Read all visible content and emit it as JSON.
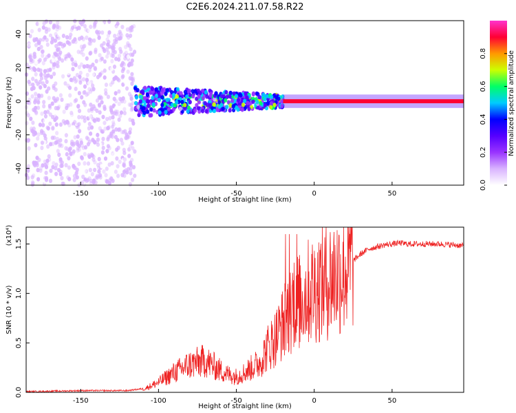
{
  "figure": {
    "title": "C2E6.2024.211.07.58.R22"
  },
  "chart_data": [
    {
      "type": "heatmap",
      "xlabel": "Height of straight line (km)",
      "ylabel": "Frequency (Hz)",
      "xlim": [
        -185,
        96
      ],
      "ylim": [
        -50,
        48
      ],
      "x_ticks": [
        -150,
        -100,
        -50,
        0,
        50
      ],
      "y_ticks": [
        -40,
        -20,
        0,
        20,
        40
      ],
      "colorbar": {
        "label": "Normalized spectral amplitude",
        "range": [
          0,
          1
        ],
        "ticks": [
          "0.0",
          "0.2",
          "0.4",
          "0.6",
          "0.8"
        ],
        "colormap": [
          "#ffffff",
          "#d9b3ff",
          "#9933ff",
          "#5500ff",
          "#0000ff",
          "#00ccff",
          "#00ff66",
          "#ccff00",
          "#ff9900",
          "#ff0033",
          "#ff33cc"
        ]
      },
      "regions": [
        {
          "x_range": [
            -185,
            -115
          ],
          "freq_range": [
            -50,
            48
          ],
          "amplitude": 0.1,
          "description": "broadband noise"
        },
        {
          "x_range": [
            -115,
            -20
          ],
          "freq_range": [
            -10,
            8
          ],
          "amplitude": 0.35,
          "description": "narrowing signal band"
        },
        {
          "x_range": [
            -20,
            96
          ],
          "freq_range": [
            -2,
            2
          ],
          "amplitude": 0.9,
          "description": "carrier line"
        }
      ]
    },
    {
      "type": "line",
      "xlabel": "Height of straight line (km)",
      "ylabel": "SNR (10 * v/v)",
      "yscale_label": "(x10⁴)",
      "xlim": [
        -185,
        96
      ],
      "ylim": [
        0,
        1.67
      ],
      "x_ticks": [
        -150,
        -100,
        -50,
        0,
        50
      ],
      "y_ticks": [
        "0.0",
        "0.5",
        "1.0",
        "1.5"
      ],
      "color": "#ee2222",
      "series": [
        {
          "x": [
            -185,
            -150,
            -120,
            -110,
            -100,
            -90,
            -80,
            -75,
            -70,
            -65,
            -60,
            -55,
            -50,
            -45,
            -40,
            -35,
            -30,
            -25,
            -20,
            -15,
            -12,
            -10,
            -5,
            0,
            5,
            10,
            15,
            20,
            25,
            30,
            35,
            40,
            45,
            50,
            55,
            60,
            70,
            80,
            90,
            96
          ],
          "y": [
            0.0,
            0.01,
            0.01,
            0.03,
            0.1,
            0.2,
            0.28,
            0.3,
            0.32,
            0.27,
            0.22,
            0.18,
            0.16,
            0.2,
            0.25,
            0.3,
            0.45,
            0.55,
            0.7,
            0.85,
            1.0,
            0.9,
            1.0,
            1.05,
            1.1,
            1.15,
            1.2,
            1.25,
            1.33,
            1.4,
            1.45,
            1.47,
            1.49,
            1.5,
            1.51,
            1.5,
            1.5,
            1.5,
            1.49,
            1.48
          ]
        }
      ]
    }
  ]
}
